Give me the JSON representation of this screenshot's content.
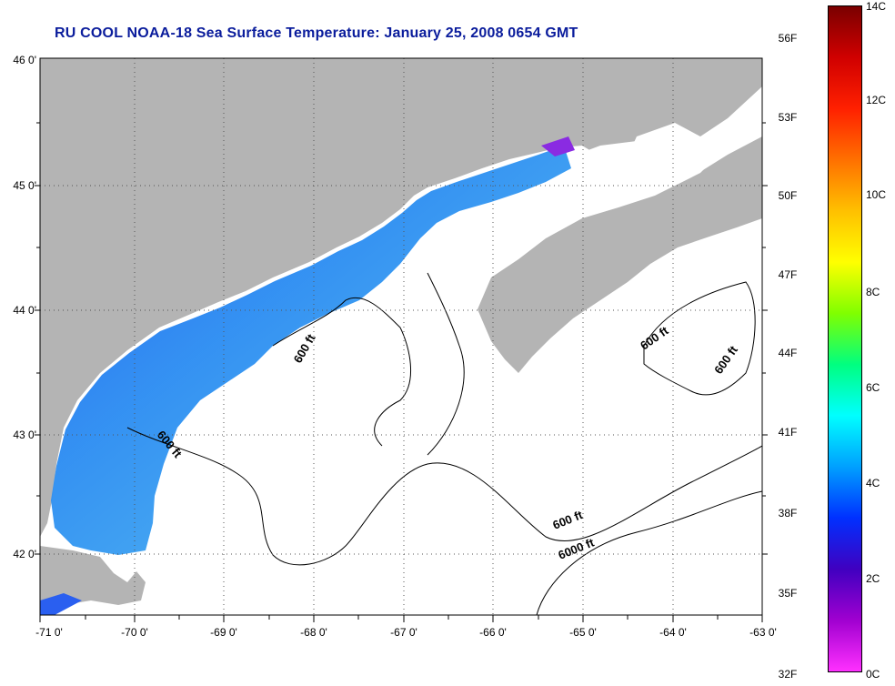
{
  "title": "RU COOL  NOAA-18  Sea Surface Temperature:  January 25, 2008 0654 GMT",
  "map": {
    "longitude_labels": [
      "-71 0'",
      "-70 0'",
      "-69 0'",
      "-68 0'",
      "-67 0'",
      "-66 0'",
      "-65 0'",
      "-64 0'",
      "-63 0'"
    ],
    "latitude_labels": [
      "46 0'",
      "45 0'",
      "44 0'",
      "43 0'",
      "42 0'"
    ],
    "contour_labels": [
      "600 ft",
      "600 ft",
      "600 ft",
      "600 ft",
      "600 ft",
      "6000 ft"
    ],
    "land_color": "#b4b4b4",
    "ocean_no_data_color": "#ffffff"
  },
  "colorbar": {
    "fahrenheit_labels": [
      "56F",
      "53F",
      "50F",
      "47F",
      "44F",
      "41F",
      "38F",
      "35F",
      "32F"
    ],
    "celsius_labels": [
      "14C",
      "12C",
      "10C",
      "8C",
      "6C",
      "4C",
      "2C",
      "0C"
    ],
    "gradient_colors": [
      "#7a0000",
      "#d00000",
      "#ff2000",
      "#ff7000",
      "#ffc000",
      "#ffff00",
      "#80ff00",
      "#00ff80",
      "#00ffff",
      "#00a0ff",
      "#0030ff",
      "#4000c0",
      "#a000d0",
      "#ff30ff"
    ]
  }
}
